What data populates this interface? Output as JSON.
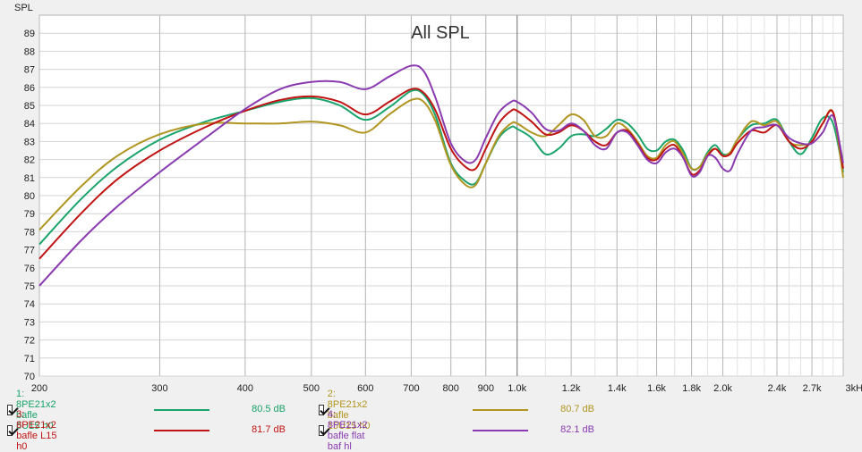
{
  "chart_data": {
    "type": "line",
    "title": "All SPL",
    "ylabel": "SPL",
    "xlabel": "",
    "x_scale": "log",
    "xlim": [
      200,
      3000
    ],
    "ylim": [
      70,
      90
    ],
    "x_ticks": [
      {
        "v": 200,
        "label": "200"
      },
      {
        "v": 300,
        "label": "300"
      },
      {
        "v": 400,
        "label": "400"
      },
      {
        "v": 500,
        "label": "500"
      },
      {
        "v": 600,
        "label": "600"
      },
      {
        "v": 700,
        "label": "700"
      },
      {
        "v": 800,
        "label": "800"
      },
      {
        "v": 900,
        "label": "900"
      },
      {
        "v": 1000,
        "label": "1.0k"
      },
      {
        "v": 1200,
        "label": "1.2k"
      },
      {
        "v": 1400,
        "label": "1.4k"
      },
      {
        "v": 1600,
        "label": "1.6k"
      },
      {
        "v": 1800,
        "label": "1.8k"
      },
      {
        "v": 2000,
        "label": "2.0k"
      },
      {
        "v": 2400,
        "label": "2.4k"
      },
      {
        "v": 2700,
        "label": "2.7k"
      },
      {
        "v": 3000,
        "label": "3kHz"
      }
    ],
    "y_ticks": [
      70,
      71,
      72,
      73,
      74,
      75,
      76,
      77,
      78,
      79,
      80,
      81,
      82,
      83,
      84,
      85,
      86,
      87,
      88,
      89
    ],
    "grid": true,
    "legend_position": "bottom",
    "series": [
      {
        "name": "1: 8PE21x2 bafle 5U15 h0",
        "value_label": "80.5 dB",
        "color": "#1aa36a",
        "x": [
          200,
          230,
          260,
          300,
          350,
          400,
          450,
          500,
          550,
          600,
          650,
          700,
          730,
          760,
          800,
          840,
          870,
          900,
          940,
          980,
          1000,
          1050,
          1100,
          1150,
          1200,
          1250,
          1300,
          1350,
          1400,
          1450,
          1500,
          1550,
          1600,
          1650,
          1700,
          1750,
          1800,
          1850,
          1900,
          1950,
          2000,
          2050,
          2100,
          2200,
          2300,
          2400,
          2500,
          2600,
          2700,
          2800,
          2900,
          3000
        ],
        "y": [
          77.3,
          79.8,
          81.6,
          83.1,
          84.1,
          84.7,
          85.2,
          85.4,
          85.0,
          84.2,
          84.9,
          85.8,
          85.6,
          84.4,
          81.8,
          80.8,
          80.7,
          81.8,
          83.2,
          83.8,
          83.7,
          83.2,
          82.3,
          82.6,
          83.3,
          83.4,
          83.3,
          83.7,
          84.2,
          84.0,
          83.4,
          82.6,
          82.5,
          83.0,
          83.1,
          82.5,
          81.5,
          81.6,
          82.4,
          82.8,
          82.3,
          82.4,
          83.1,
          83.9,
          84.0,
          84.2,
          83.0,
          82.3,
          83.2,
          84.3,
          84.0,
          81.3
        ]
      },
      {
        "name": "2: 8PE21x2 bafle 15U15 h0",
        "value_label": "80.7 dB",
        "color": "#b09520",
        "x": [
          200,
          230,
          260,
          300,
          350,
          400,
          450,
          500,
          550,
          600,
          650,
          700,
          730,
          760,
          800,
          840,
          870,
          900,
          940,
          980,
          1000,
          1050,
          1100,
          1150,
          1200,
          1250,
          1300,
          1350,
          1400,
          1450,
          1500,
          1550,
          1600,
          1650,
          1700,
          1750,
          1800,
          1850,
          1900,
          1950,
          2000,
          2050,
          2100,
          2200,
          2300,
          2400,
          2500,
          2600,
          2700,
          2800,
          2900,
          3000
        ],
        "y": [
          78.1,
          80.5,
          82.2,
          83.4,
          84.0,
          84.0,
          84.0,
          84.1,
          83.9,
          83.5,
          84.5,
          85.3,
          85.2,
          84.1,
          81.7,
          80.6,
          80.6,
          81.8,
          83.3,
          84.0,
          84.0,
          83.5,
          83.3,
          83.9,
          84.5,
          84.2,
          83.3,
          83.3,
          84.0,
          83.7,
          83.0,
          82.2,
          82.1,
          82.8,
          83.0,
          82.3,
          81.5,
          81.6,
          82.3,
          82.6,
          82.2,
          82.4,
          83.1,
          84.1,
          83.9,
          84.1,
          83.0,
          82.8,
          83.0,
          84.0,
          84.6,
          81.0
        ]
      },
      {
        "name": "3: 8PE21x2 bafle L15 h0",
        "value_label": "81.7 dB",
        "color": "#c01414",
        "x": [
          200,
          230,
          260,
          300,
          350,
          400,
          450,
          500,
          550,
          600,
          650,
          700,
          730,
          760,
          800,
          840,
          870,
          900,
          940,
          980,
          1000,
          1050,
          1100,
          1150,
          1200,
          1250,
          1300,
          1350,
          1400,
          1450,
          1500,
          1550,
          1600,
          1650,
          1700,
          1750,
          1800,
          1850,
          1900,
          1950,
          2000,
          2050,
          2100,
          2200,
          2300,
          2400,
          2500,
          2600,
          2700,
          2800,
          2900,
          3000
        ],
        "y": [
          76.5,
          79.0,
          80.9,
          82.5,
          83.8,
          84.7,
          85.3,
          85.5,
          85.2,
          84.5,
          85.2,
          85.9,
          85.7,
          84.7,
          82.6,
          81.6,
          81.5,
          82.6,
          84.0,
          84.7,
          84.7,
          84.1,
          83.4,
          83.5,
          83.9,
          83.6,
          83.0,
          82.8,
          83.5,
          83.6,
          82.9,
          82.1,
          82.0,
          82.6,
          82.8,
          82.1,
          81.2,
          81.4,
          82.2,
          82.6,
          82.2,
          82.3,
          82.9,
          83.6,
          83.5,
          83.9,
          83.0,
          82.6,
          83.0,
          84.0,
          84.6,
          81.5
        ]
      },
      {
        "name": "4: 8PE21x2 bafle flat baf hl",
        "value_label": "82.1 dB",
        "color": "#8a3ab0",
        "x": [
          200,
          230,
          260,
          300,
          350,
          400,
          450,
          500,
          550,
          600,
          650,
          700,
          730,
          760,
          800,
          840,
          870,
          900,
          940,
          980,
          1000,
          1050,
          1100,
          1150,
          1200,
          1250,
          1300,
          1350,
          1400,
          1450,
          1500,
          1550,
          1600,
          1650,
          1700,
          1750,
          1800,
          1850,
          1900,
          1950,
          2000,
          2050,
          2100,
          2200,
          2300,
          2400,
          2500,
          2600,
          2700,
          2800,
          2900,
          3000
        ],
        "y": [
          75.0,
          77.5,
          79.4,
          81.3,
          83.2,
          84.8,
          85.9,
          86.3,
          86.3,
          85.9,
          86.6,
          87.2,
          86.9,
          85.4,
          82.9,
          81.9,
          82.0,
          83.2,
          84.6,
          85.2,
          85.2,
          84.6,
          83.7,
          83.6,
          84.0,
          83.6,
          82.8,
          82.6,
          83.5,
          83.5,
          82.8,
          82.0,
          81.8,
          82.4,
          82.6,
          82.1,
          81.1,
          81.3,
          82.2,
          82.1,
          81.5,
          81.4,
          82.3,
          83.6,
          83.8,
          83.9,
          83.2,
          82.9,
          82.9,
          83.5,
          84.4,
          81.8
        ]
      }
    ]
  }
}
